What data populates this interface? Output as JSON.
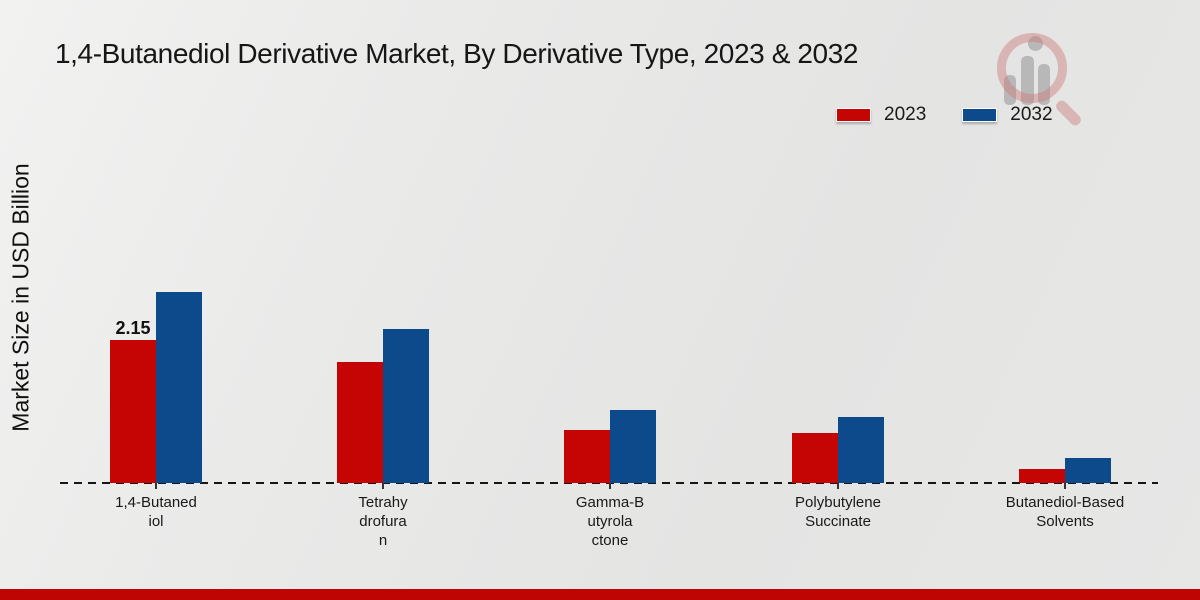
{
  "title": "1,4-Butanediol Derivative Market, By Derivative Type, 2023 & 2032",
  "ylabel": "Market Size in USD Billion",
  "legend": [
    {
      "label": "2023",
      "color": "#c50404"
    },
    {
      "label": "2032",
      "color": "#0d4a8c"
    }
  ],
  "watermark_icon": "magnifier-bar-chart-logo",
  "chart_data": {
    "type": "bar",
    "title": "1,4-Butanediol Derivative Market, By Derivative Type, 2023 & 2032",
    "ylabel": "Market Size in USD Billion",
    "xlabel": "",
    "categories": [
      "1,4-Butanediol",
      "Tetrahydrofuran",
      "Gamma-Butyrolactone",
      "Polybutylene Succinate",
      "Butanediol-Based Solvents"
    ],
    "category_labels_wrapped": [
      "1,4-Butaned\niol",
      "Tetrahy\ndrofura\nn",
      "Gamma-B\nutyrola\nctone",
      "Polybutylene\nSuccinate",
      "Butanediol-Based\nSolvents"
    ],
    "series": [
      {
        "name": "2023",
        "color": "#c50404",
        "values": [
          2.15,
          1.82,
          0.8,
          0.75,
          0.21
        ]
      },
      {
        "name": "2032",
        "color": "#0d4a8c",
        "values": [
          2.87,
          2.32,
          1.1,
          0.99,
          0.38
        ]
      }
    ],
    "data_labels": [
      {
        "series": "2023",
        "category": "1,4-Butanediol",
        "text": "2.15"
      }
    ],
    "ylim": [
      0,
      3.2
    ],
    "grid": false,
    "axis_numbers_shown": false,
    "baseline_style": "dashed",
    "legend_position": "top-right"
  },
  "footer": {
    "bar_color": "#bf0504"
  }
}
